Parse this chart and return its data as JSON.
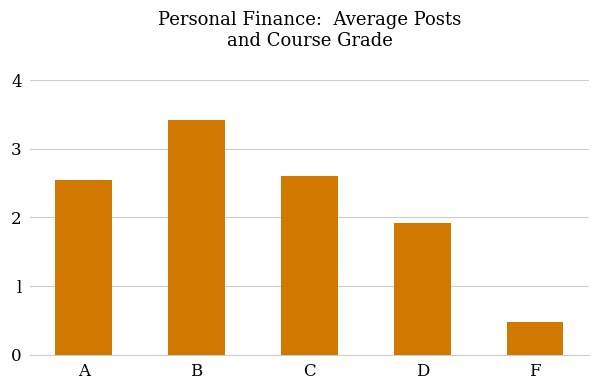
{
  "categories": [
    "A",
    "B",
    "C",
    "D",
    "F"
  ],
  "values": [
    2.55,
    3.42,
    2.6,
    1.92,
    0.48
  ],
  "bar_color": "#D07800",
  "title_line1": "Personal Finance:  Average Posts",
  "title_line2": "and Course Grade",
  "ylim": [
    0,
    4.3
  ],
  "yticks": [
    0,
    1,
    2,
    3,
    4
  ],
  "ytick_labels": [
    "0",
    "l",
    "2",
    "3",
    "4"
  ],
  "background_color": "#ffffff",
  "bar_width": 0.5,
  "title_fontsize": 13,
  "tick_fontsize": 12,
  "grid_color": "#cccccc",
  "figsize": [
    6.0,
    3.91
  ],
  "dpi": 100
}
